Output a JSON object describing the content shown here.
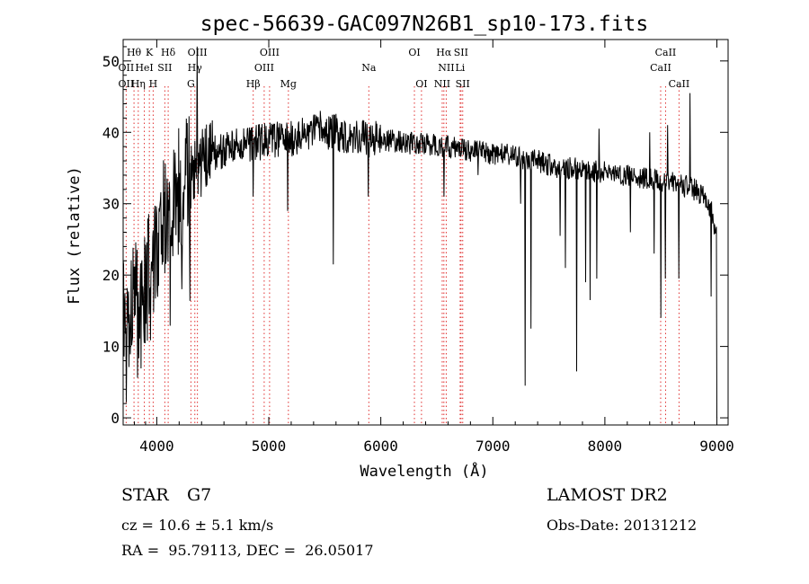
{
  "chart_data": {
    "type": "line",
    "title": "spec-56639-GAC097N26B1_sp10-173.fits",
    "xlabel": "Wavelength (Å)",
    "ylabel": "Flux (relative)",
    "xlim": [
      3700,
      9100
    ],
    "ylim": [
      -1,
      53
    ],
    "xticks": [
      4000,
      5000,
      6000,
      7000,
      8000,
      9000
    ],
    "yticks": [
      0,
      10,
      20,
      30,
      40,
      50
    ],
    "grid": false,
    "series": [
      {
        "x": [
          3700,
          3750,
          3800,
          3850,
          3900,
          3950,
          4000,
          4050,
          4100,
          4150,
          4200,
          4250,
          4300,
          4350,
          4400,
          4450,
          4500,
          4600,
          4700,
          4800,
          4900,
          5000,
          5100,
          5200,
          5300,
          5400,
          5500,
          5600,
          5700,
          5800,
          5900,
          6000,
          6100,
          6200,
          6300,
          6400,
          6500,
          6600,
          6700,
          6800,
          6900,
          7000,
          7100,
          7200,
          7300,
          7400,
          7500,
          7600,
          7700,
          7800,
          7900,
          8000,
          8100,
          8200,
          8300,
          8400,
          8500,
          8600,
          8700,
          8800,
          8900,
          8950,
          9000
        ],
        "y": [
          15,
          12,
          17,
          14,
          19,
          21,
          24,
          27,
          29,
          31,
          32,
          33,
          34,
          35,
          36,
          36.5,
          37,
          37.5,
          38,
          38.5,
          38.5,
          39,
          39,
          39,
          39.5,
          40,
          40,
          40,
          39.5,
          39.5,
          39,
          39,
          38.8,
          38.6,
          38.4,
          38.3,
          38.2,
          38,
          37.8,
          37.5,
          37.2,
          37,
          37,
          36.5,
          36,
          36,
          35.5,
          35,
          35,
          34.7,
          34.5,
          34.5,
          34.2,
          34,
          33.8,
          33.5,
          33,
          33,
          32.5,
          32,
          31,
          29,
          25
        ]
      }
    ],
    "absorption_lines": [
      {
        "x": 4227,
        "y": 23.5
      },
      {
        "x": 4861,
        "y": 31
      },
      {
        "x": 5170,
        "y": 29
      },
      {
        "x": 5577,
        "y": 21.5
      },
      {
        "x": 5890,
        "y": 31
      },
      {
        "x": 6563,
        "y": 31
      },
      {
        "x": 6867,
        "y": 34
      },
      {
        "x": 7250,
        "y": 30
      },
      {
        "x": 7290,
        "y": 4.5
      },
      {
        "x": 7340,
        "y": 12.5
      },
      {
        "x": 7600,
        "y": 25.5
      },
      {
        "x": 7650,
        "y": 21
      },
      {
        "x": 7750,
        "y": 6.5
      },
      {
        "x": 7830,
        "y": 19
      },
      {
        "x": 7870,
        "y": 16.5
      },
      {
        "x": 7930,
        "y": 19.5
      },
      {
        "x": 8230,
        "y": 26
      },
      {
        "x": 8440,
        "y": 23
      },
      {
        "x": 8500,
        "y": 14
      },
      {
        "x": 8542,
        "y": 19.5
      },
      {
        "x": 8662,
        "y": 19.5
      },
      {
        "x": 8950,
        "y": 17
      },
      {
        "x": 9000,
        "y": 0
      }
    ],
    "emission_spikes": [
      {
        "x": 4360,
        "y": 52
      },
      {
        "x": 5460,
        "y": 43
      },
      {
        "x": 7950,
        "y": 40.5
      },
      {
        "x": 8400,
        "y": 40
      },
      {
        "x": 8560,
        "y": 41
      },
      {
        "x": 8760,
        "y": 45.5
      }
    ],
    "annotations": [
      {
        "label": "Hθ",
        "x": 3797,
        "row": 0
      },
      {
        "label": "OII",
        "x": 3727,
        "row": 1
      },
      {
        "label": "OII",
        "x": 3727,
        "row": 2
      },
      {
        "label": "K",
        "x": 3934,
        "row": 0
      },
      {
        "label": "HeI",
        "x": 3889,
        "row": 1
      },
      {
        "label": "Hη",
        "x": 3835,
        "row": 2
      },
      {
        "label": "H",
        "x": 3968,
        "row": 2
      },
      {
        "label": "Hδ",
        "x": 4102,
        "row": 0
      },
      {
        "label": "SII",
        "x": 4072,
        "row": 1
      },
      {
        "label": "OIII",
        "x": 4363,
        "row": 0
      },
      {
        "label": "Hγ",
        "x": 4340,
        "row": 1
      },
      {
        "label": "G",
        "x": 4305,
        "row": 2
      },
      {
        "label": "OIII",
        "x": 5007,
        "row": 0
      },
      {
        "label": "OIII",
        "x": 4959,
        "row": 1
      },
      {
        "label": "Hβ",
        "x": 4861,
        "row": 2
      },
      {
        "label": "Mg",
        "x": 5175,
        "row": 2
      },
      {
        "label": "Na",
        "x": 5893,
        "row": 1
      },
      {
        "label": "OI",
        "x": 6300,
        "row": 0
      },
      {
        "label": "OI",
        "x": 6363,
        "row": 2
      },
      {
        "label": "Hα",
        "x": 6563,
        "row": 0
      },
      {
        "label": "SII",
        "x": 6716,
        "row": 0
      },
      {
        "label": "NII",
        "x": 6584,
        "row": 1
      },
      {
        "label": "Li",
        "x": 6708,
        "row": 1
      },
      {
        "label": "NII",
        "x": 6548,
        "row": 2
      },
      {
        "label": "SII",
        "x": 6731,
        "row": 2
      },
      {
        "label": "CaII",
        "x": 8542,
        "row": 0
      },
      {
        "label": "CaII",
        "x": 8498,
        "row": 1
      },
      {
        "label": "CaII",
        "x": 8662,
        "row": 2
      }
    ],
    "line_marker_color": "#e03030",
    "trace_color": "#000000"
  },
  "info": {
    "object_class": "STAR",
    "subclass": "G7",
    "redshift_text": "cz = 10.6 ± 5.1 km/s",
    "radec_text": "RA =  95.79113, DEC =  26.05017",
    "survey": "LAMOST DR2",
    "obs_date_text": "Obs-Date: 20131212"
  }
}
